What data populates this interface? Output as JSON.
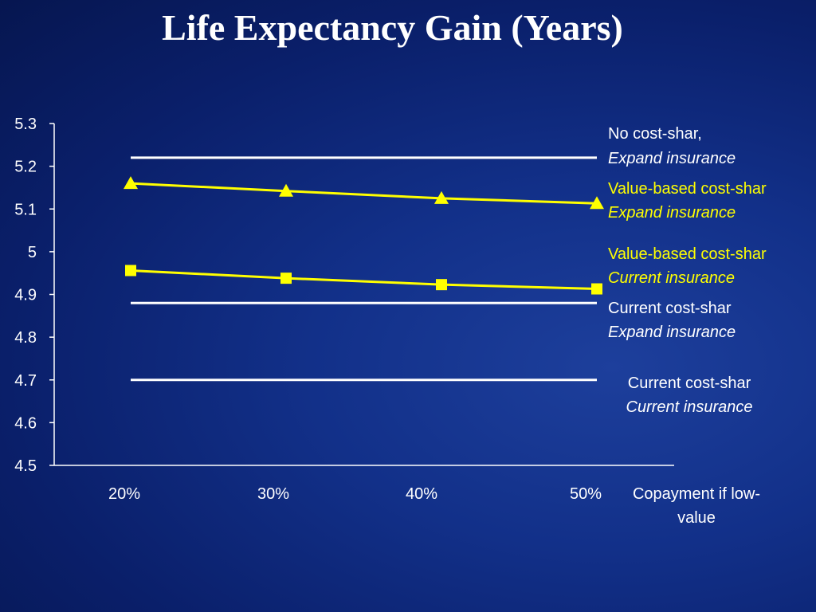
{
  "title": "Life Expectancy Gain (Years)",
  "colors": {
    "background": "#0b2170",
    "white_series": "#ffffff",
    "yellow_series": "#ffff00"
  },
  "chart_data": {
    "type": "line",
    "title": "Life Expectancy Gain (Years)",
    "xlabel": "Copayment if low-value",
    "ylabel": "",
    "categories": [
      "20%",
      "30%",
      "40%",
      "50%"
    ],
    "ylim": [
      4.5,
      5.3
    ],
    "yticks": [
      "5.3",
      "5.2",
      "5.1",
      "5",
      "4.9",
      "4.8",
      "4.7",
      "4.6",
      "4.5"
    ],
    "grid": false,
    "legend": "right-side inline labels",
    "series": [
      {
        "label_line1": "No cost-shar,",
        "label_line2": "Expand insurance",
        "values": [
          5.22,
          5.22,
          5.22,
          5.22
        ],
        "color": "#ffffff",
        "marker": "none"
      },
      {
        "label_line1": "Value-based cost-shar",
        "label_line2": "Expand insurance",
        "values": [
          5.16,
          5.142,
          5.125,
          5.113
        ],
        "color": "#ffff00",
        "marker": "triangle"
      },
      {
        "label_line1": "Value-based cost-shar",
        "label_line2": "Current insurance",
        "values": [
          4.956,
          4.938,
          4.923,
          4.913
        ],
        "color": "#ffff00",
        "marker": "square"
      },
      {
        "label_line1": "Current cost-shar",
        "label_line2": "Expand insurance",
        "values": [
          4.88,
          4.88,
          4.88,
          4.88
        ],
        "color": "#ffffff",
        "marker": "none"
      },
      {
        "label_line1": "Current cost-shar",
        "label_line2": "Current insurance",
        "values": [
          4.7,
          4.7,
          4.7,
          4.7
        ],
        "color": "#ffffff",
        "marker": "none"
      }
    ]
  }
}
